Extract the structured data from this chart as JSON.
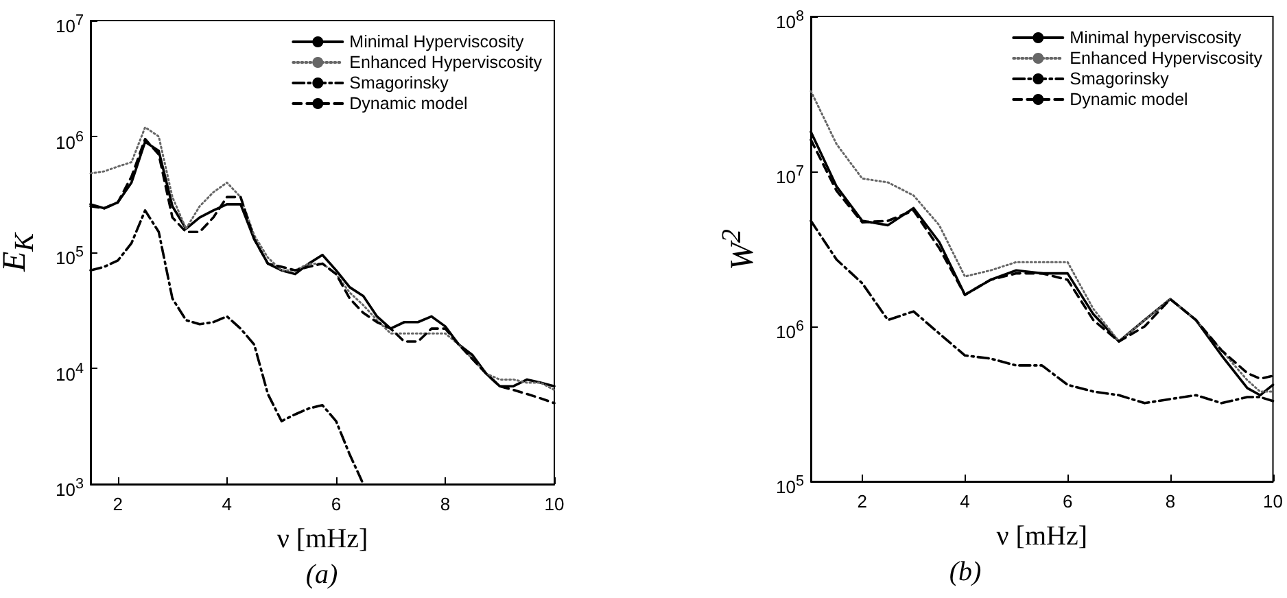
{
  "chart_data": [
    {
      "type": "line",
      "xlabel": "ν [mHz]",
      "ylabel": "E$_{K}$",
      "annotations": [
        "(a)"
      ],
      "log": "y",
      "legend": "top right",
      "grid": false,
      "xlim": [
        1.5,
        10
      ],
      "xticks": [
        2,
        4,
        6,
        8,
        10
      ],
      "ylim": [
        1000,
        10000000
      ],
      "yticks": [
        {
          "value": 1000,
          "label": "10$^{3}$"
        },
        {
          "value": 10000,
          "label": "10$^{4}$"
        },
        {
          "value": 100000,
          "label": "10$^{5}$"
        },
        {
          "value": 1000000,
          "label": "10$^{6}$"
        },
        {
          "value": 10000000,
          "label": "10$^{7}$"
        }
      ],
      "x": [
        1.5,
        1.75,
        2,
        2.25,
        2.5,
        2.75,
        3,
        3.25,
        3.5,
        3.75,
        4,
        4.25,
        4.5,
        4.75,
        5,
        5.25,
        5.5,
        5.75,
        6,
        6.25,
        6.5,
        6.75,
        7,
        7.25,
        7.5,
        7.75,
        8,
        8.25,
        8.5,
        8.75,
        9,
        9.25,
        9.5,
        9.75,
        10
      ],
      "series": [
        {
          "name": "Minimal Hyperviscosity",
          "color": "#000000",
          "line_style": "solid",
          "values": [
            260000,
            240000,
            270000,
            400000,
            900000,
            750000,
            250000,
            160000,
            200000,
            230000,
            260000,
            260000,
            130000,
            80000,
            70000,
            65000,
            80000,
            95000,
            70000,
            50000,
            42000,
            28000,
            22000,
            25000,
            25000,
            28000,
            23000,
            16000,
            13000,
            9000,
            7000,
            7000,
            8000,
            7500,
            7000
          ]
        },
        {
          "name": "Enhanced Hyperviscosity",
          "color": "#666666",
          "line_style": "dotted",
          "values": [
            480000,
            500000,
            550000,
            600000,
            1200000,
            1000000,
            300000,
            160000,
            250000,
            330000,
            400000,
            300000,
            140000,
            90000,
            70000,
            70000,
            80000,
            80000,
            65000,
            45000,
            35000,
            26000,
            20000,
            20000,
            20000,
            20000,
            20000,
            16000,
            12000,
            9000,
            8000,
            8000,
            7500,
            7500,
            6500
          ]
        },
        {
          "name": "Smagorinsky",
          "color": "#000000",
          "line_style": "dashdot",
          "values": [
            70000,
            75000,
            85000,
            120000,
            230000,
            150000,
            40000,
            26000,
            24000,
            25000,
            28000,
            22000,
            16000,
            6000,
            3500,
            4000,
            4500,
            4800,
            3500,
            1800,
            1000,
            null,
            null,
            null,
            null,
            null,
            null,
            null,
            null,
            null,
            null,
            null,
            null,
            null,
            null
          ]
        },
        {
          "name": "Dynamic model",
          "color": "#000000",
          "line_style": "dashed",
          "values": [
            250000,
            240000,
            270000,
            450000,
            950000,
            700000,
            200000,
            150000,
            150000,
            200000,
            300000,
            300000,
            130000,
            80000,
            75000,
            70000,
            75000,
            80000,
            65000,
            40000,
            30000,
            25000,
            22000,
            17000,
            17000,
            22000,
            22000,
            16000,
            12000,
            9000,
            7000,
            6500,
            6000,
            5500,
            5000
          ]
        }
      ]
    },
    {
      "type": "line",
      "xlabel": "ν [mHz]",
      "ylabel": "W$^{2}$",
      "annotations": [
        "(b)"
      ],
      "log": "y",
      "legend": "top right",
      "grid": false,
      "xlim": [
        1,
        10
      ],
      "xticks": [
        2,
        4,
        6,
        8,
        10
      ],
      "ylim": [
        100000,
        100000000
      ],
      "yticks": [
        {
          "value": 100000,
          "label": "10$^{5}$"
        },
        {
          "value": 1000000,
          "label": "10$^{6}$"
        },
        {
          "value": 10000000,
          "label": "10$^{7}$"
        },
        {
          "value": 100000000,
          "label": "10$^{8}$"
        }
      ],
      "x": [
        1,
        1.5,
        2,
        2.5,
        3,
        3.5,
        4,
        4.5,
        5,
        5.5,
        6,
        6.5,
        7,
        7.5,
        8,
        8.5,
        9,
        9.5,
        9.75,
        10
      ],
      "series": [
        {
          "name": "Minimal hyperviscosity",
          "color": "#000000",
          "line_style": "solid",
          "values": [
            18000000,
            8000000,
            4800000,
            4500000,
            5800000,
            3500000,
            1600000,
            2000000,
            2300000,
            2200000,
            2200000,
            1200000,
            800000,
            1100000,
            1500000,
            1100000,
            650000,
            400000,
            360000,
            420000
          ]
        },
        {
          "name": "Enhanced Hyperviscosity",
          "color": "#666666",
          "line_style": "dotted",
          "values": [
            33000000,
            15000000,
            9000000,
            8500000,
            7000000,
            4500000,
            2100000,
            2300000,
            2600000,
            2600000,
            2600000,
            1300000,
            800000,
            1100000,
            1500000,
            1100000,
            700000,
            450000,
            380000,
            380000
          ]
        },
        {
          "name": "Smagorinsky",
          "color": "#000000",
          "line_style": "dashdot",
          "values": [
            4800000,
            2700000,
            1900000,
            1100000,
            1250000,
            900000,
            650000,
            620000,
            560000,
            560000,
            420000,
            380000,
            360000,
            320000,
            340000,
            360000,
            320000,
            350000,
            350000,
            330000
          ]
        },
        {
          "name": "Dynamic model",
          "color": "#000000",
          "line_style": "dashed",
          "values": [
            16000000,
            7500000,
            4700000,
            4800000,
            5600000,
            3200000,
            1600000,
            2000000,
            2200000,
            2200000,
            2000000,
            1100000,
            800000,
            1000000,
            1500000,
            1100000,
            700000,
            500000,
            460000,
            480000
          ]
        }
      ]
    }
  ]
}
